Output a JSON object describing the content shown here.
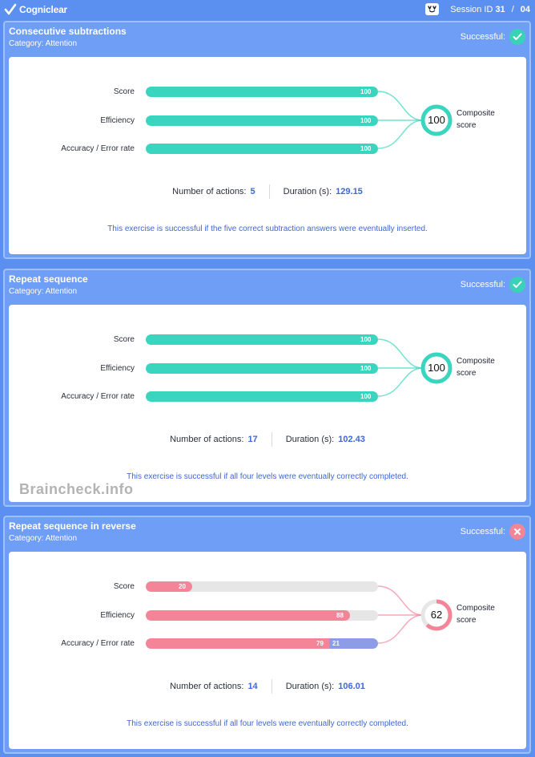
{
  "header": {
    "brand": "Cogniclear",
    "logo_icon": "checkmark-logo-icon",
    "session_label": "Session ID",
    "session_id": "31",
    "session_separator": "/",
    "session_total": "04"
  },
  "watermark": "Braincheck.info",
  "colors": {
    "teal": "#3ad5bf",
    "pink": "#f48599",
    "blue": "#8c9ce6",
    "link": "#3f66d4"
  },
  "exercises": [
    {
      "title": "Consecutive subtractions",
      "category": "Category: Attention",
      "status_label": "Successful:",
      "status_icon": "check-icon",
      "metrics": [
        {
          "label": "Score",
          "value": "100",
          "fraction": 1.0
        },
        {
          "label": "Efficiency",
          "value": "100",
          "fraction": 1.0
        },
        {
          "label": "Accuracy / Error rate",
          "value": "100",
          "fraction": 1.0,
          "error": ""
        }
      ],
      "composite_value": "100",
      "composite_label_1": "Composite",
      "composite_label_2": "score",
      "actions_label": "Number of actions:",
      "actions_value": "5",
      "duration_label": "Duration (s):",
      "duration_value": "129.15",
      "note": "This exercise is successful if the five correct subtraction answers were eventually inserted."
    },
    {
      "title": "Repeat sequence",
      "category": "Category: Attention",
      "status_label": "Successful:",
      "status_icon": "check-icon",
      "metrics": [
        {
          "label": "Score",
          "value": "100",
          "fraction": 1.0
        },
        {
          "label": "Efficiency",
          "value": "100",
          "fraction": 1.0
        },
        {
          "label": "Accuracy / Error rate",
          "value": "100",
          "fraction": 1.0,
          "error": ""
        }
      ],
      "composite_value": "100",
      "composite_label_1": "Composite",
      "composite_label_2": "score",
      "actions_label": "Number of actions:",
      "actions_value": "17",
      "duration_label": "Duration (s):",
      "duration_value": "102.43",
      "note": "This exercise is successful if all four levels were eventually correctly completed."
    },
    {
      "title": "Repeat sequence in reverse",
      "category": "Category: Attention",
      "status_label": "Successful:",
      "status_icon": "close-icon",
      "metrics": [
        {
          "label": "Score",
          "value": "20",
          "fraction": 0.2
        },
        {
          "label": "Efficiency",
          "value": "88",
          "fraction": 0.88
        },
        {
          "label": "Accuracy / Error rate",
          "value": "79",
          "fraction": 0.79,
          "error": "21"
        }
      ],
      "composite_value": "62",
      "composite_label_1": "Composite",
      "composite_label_2": "score",
      "actions_label": "Number of actions:",
      "actions_value": "14",
      "duration_label": "Duration (s):",
      "duration_value": "106.01",
      "note": "This exercise is successful if all four levels were eventually correctly completed."
    }
  ]
}
